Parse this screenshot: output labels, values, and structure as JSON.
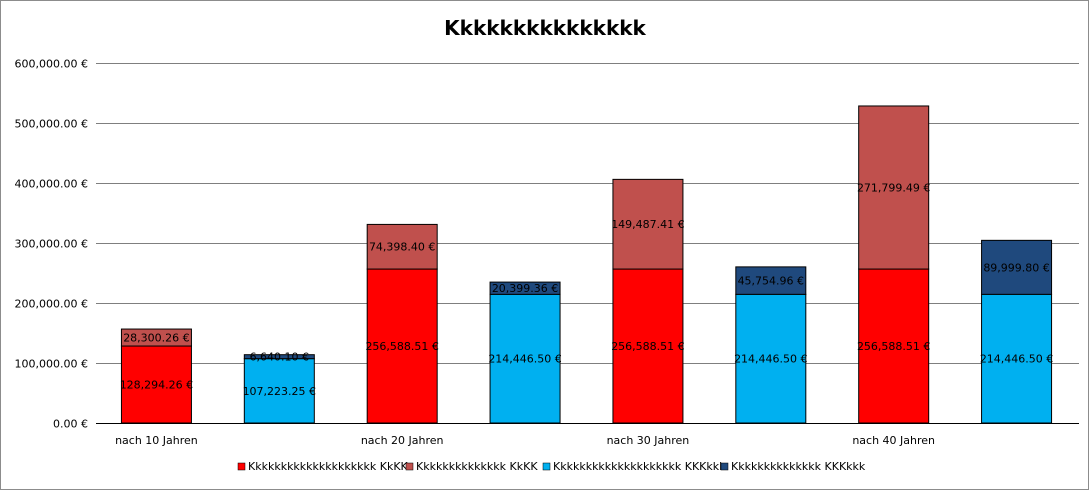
{
  "chart_data": {
    "type": "bar",
    "stacked": true,
    "title": "Kkkkkkkkkkkkkkk",
    "xlabel": "",
    "ylabel": "",
    "ylim": [
      0,
      600000
    ],
    "yticks": [
      0,
      100000,
      200000,
      300000,
      400000,
      500000,
      600000
    ],
    "ytick_labels": [
      "0.00 €",
      "100,000.00 €",
      "200,000.00 €",
      "300,000.00 €",
      "400,000.00 €",
      "500,000.00 €",
      "600,000.00 €"
    ],
    "grid": true,
    "legend_position": "bottom",
    "categories": [
      "nach 10 Jahren",
      "nach 20 Jahren",
      "nach 30 Jahren",
      "nach 40 Jahren"
    ],
    "series": [
      {
        "name": "Kkkkkkkkkkkkkkkkkkkk KkKK",
        "color": "#ff0000"
      },
      {
        "name": "Kkkkkkkkkkkkkk KkKK",
        "color": "#c0504d"
      },
      {
        "name": "Kkkkkkkkkkkkkkkkkkkk KKKkkk",
        "color": "#00b0f0"
      },
      {
        "name": "Kkkkkkkkkkkkkk KKKkkk",
        "color": "#1f497d"
      }
    ],
    "bars": [
      {
        "category": 0,
        "segments": [
          {
            "series": 0,
            "value": 128294.26,
            "label": "128,294.26 €"
          },
          {
            "series": 1,
            "value": 28300.26,
            "label": "28,300.26 €"
          }
        ]
      },
      {
        "category": 0,
        "segments": [
          {
            "series": 2,
            "value": 107223.25,
            "label": "107,223.25 €"
          },
          {
            "series": 3,
            "value": 6640.1,
            "label": "6,640.10 €"
          }
        ]
      },
      {
        "category": 1,
        "segments": [
          {
            "series": 0,
            "value": 256588.51,
            "label": "256,588.51 €"
          },
          {
            "series": 1,
            "value": 74398.4,
            "label": "74,398.40 €"
          }
        ]
      },
      {
        "category": 1,
        "segments": [
          {
            "series": 2,
            "value": 214446.5,
            "label": "214,446.50 €"
          },
          {
            "series": 3,
            "value": 20399.36,
            "label": "20,399.36 €"
          }
        ]
      },
      {
        "category": 2,
        "segments": [
          {
            "series": 0,
            "value": 256588.51,
            "label": "256,588.51 €"
          },
          {
            "series": 1,
            "value": 149487.41,
            "label": "149,487.41 €"
          }
        ]
      },
      {
        "category": 2,
        "segments": [
          {
            "series": 2,
            "value": 214446.5,
            "label": "214,446.50 €"
          },
          {
            "series": 3,
            "value": 45754.96,
            "label": "45,754.96 €"
          }
        ]
      },
      {
        "category": 3,
        "segments": [
          {
            "series": 0,
            "value": 256588.51,
            "label": "256,588.51 €"
          },
          {
            "series": 1,
            "value": 271799.49,
            "label": "271,799.49 €"
          }
        ]
      },
      {
        "category": 3,
        "segments": [
          {
            "series": 2,
            "value": 214446.5,
            "label": "214,446.50 €"
          },
          {
            "series": 3,
            "value": 89999.8,
            "label": "89,999.80 €"
          }
        ]
      }
    ]
  }
}
